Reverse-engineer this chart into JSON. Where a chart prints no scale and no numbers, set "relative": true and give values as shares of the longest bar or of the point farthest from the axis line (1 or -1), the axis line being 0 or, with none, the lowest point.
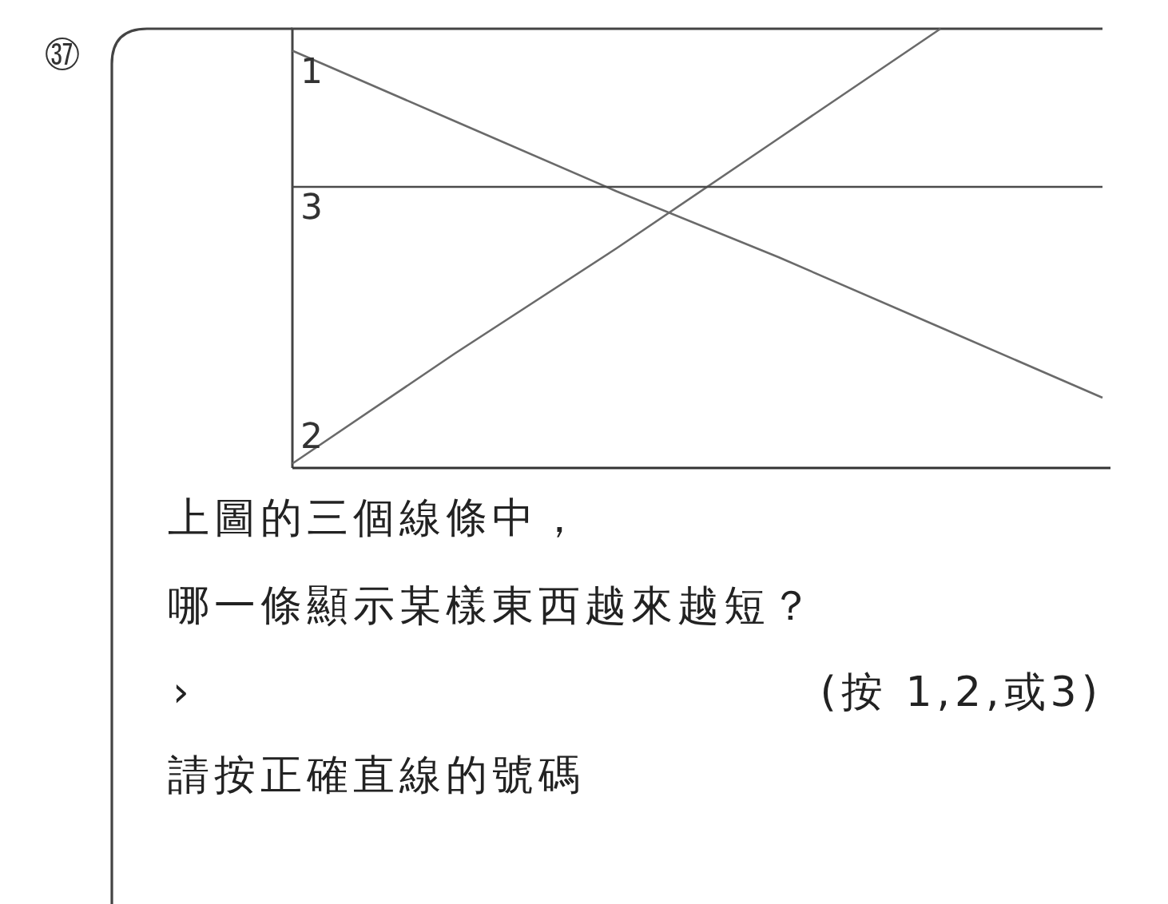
{
  "chart_data": {
    "type": "line",
    "relative": true,
    "title": "㊲",
    "categories": [
      null,
      null,
      null,
      null,
      null,
      null
    ],
    "series": [
      {
        "name": "1",
        "color": "#6a6a6a",
        "values": [
          0.95,
          0.79,
          0.63,
          0.48,
          0.32,
          0.16
        ]
      },
      {
        "name": "2",
        "color": "#6a6a6a",
        "values": [
          0.01,
          0.26,
          0.5,
          0.75,
          1.0,
          null
        ]
      },
      {
        "name": "3",
        "color": "#4a4a4a",
        "values": [
          0.64,
          0.64,
          0.64,
          0.64,
          0.64,
          0.64
        ]
      }
    ],
    "annotations": [
      "上圖的三個線條中，",
      "哪一條顯示某樣東西越來越短？",
      "›",
      "(按 1,2,或3)",
      "請按正確直線的號碼"
    ],
    "marker": "none",
    "line_style": "solid"
  }
}
